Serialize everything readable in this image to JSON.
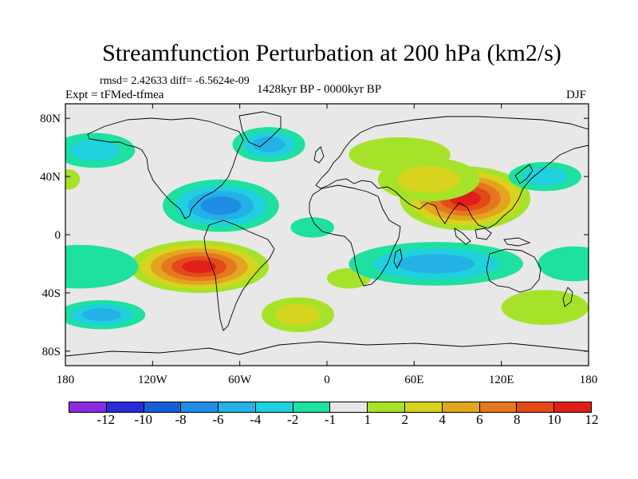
{
  "title": "Streamfunction Perturbation at 200 hPa (km2/s)",
  "subtitle": {
    "rmsd": "rmsd= 2.42633  diff= -6.5624e-09",
    "expt": "Expt = tFMed-tfmea",
    "period": "1428kyr BP - 0000kyr BP",
    "season": "DJF"
  },
  "axes": {
    "x_ticks": [
      "180",
      "120W",
      "60W",
      "0",
      "60E",
      "120E",
      "180"
    ],
    "y_ticks": [
      "80N",
      "40N",
      "0",
      "40S",
      "80S"
    ]
  },
  "legend": {
    "labels": [
      "-12",
      "-10",
      "-8",
      "-6",
      "-4",
      "-2",
      "-1",
      "1",
      "2",
      "4",
      "6",
      "8",
      "10",
      "12"
    ],
    "colors": [
      "#8a2be2",
      "#2a2ad8",
      "#1560d8",
      "#1e8de3",
      "#23b1e6",
      "#20d0dd",
      "#1ee0a0",
      "#e8e8e8",
      "#a6e22a",
      "#d6d41e",
      "#e3a520",
      "#e5781c",
      "#e34a18",
      "#e01e18"
    ]
  },
  "colors": {
    "ocean": "#e8e8e8",
    "coast": "#000000"
  },
  "map_features": {
    "positive": [
      {
        "name": "asia-high",
        "lon": 95,
        "lat": 25,
        "rx": 45,
        "ry": 22,
        "levels": 6
      },
      {
        "name": "south-america-high",
        "lon": -88,
        "lat": -22,
        "rx": 48,
        "ry": 18,
        "levels": 6
      },
      {
        "name": "eurasia-ridge",
        "lon": 50,
        "lat": 55,
        "rx": 35,
        "ry": 12,
        "levels": 1
      },
      {
        "name": "north-africa-ridge",
        "lon": 70,
        "lat": 38,
        "rx": 35,
        "ry": 15,
        "levels": 2
      },
      {
        "name": "south-atlantic-ridge",
        "lon": -20,
        "lat": -55,
        "rx": 25,
        "ry": 12,
        "levels": 2
      },
      {
        "name": "west-pacific-ridge",
        "lon": 150,
        "lat": -50,
        "rx": 30,
        "ry": 12,
        "levels": 1
      },
      {
        "name": "atlantic-small",
        "lon": 15,
        "lat": -30,
        "rx": 15,
        "ry": 7,
        "levels": 1
      },
      {
        "name": "dateline-east",
        "lon": -178,
        "lat": 38,
        "rx": 8,
        "ry": 7,
        "levels": 1
      }
    ],
    "negative": [
      {
        "name": "caribbean-low",
        "lon": -73,
        "lat": 20,
        "rx": 40,
        "ry": 18,
        "levels": 4
      },
      {
        "name": "indian-ocean-low",
        "lon": 75,
        "lat": -20,
        "rx": 60,
        "ry": 15,
        "levels": 3
      },
      {
        "name": "atlantic-north-low",
        "lon": -40,
        "lat": 62,
        "rx": 25,
        "ry": 12,
        "levels": 3
      },
      {
        "name": "pacific-north-low",
        "lon": -160,
        "lat": 58,
        "rx": 28,
        "ry": 12,
        "levels": 2
      },
      {
        "name": "pacific-south-low",
        "lon": -170,
        "lat": -22,
        "rx": 40,
        "ry": 15,
        "levels": 1
      },
      {
        "name": "south-pacific-low",
        "lon": -155,
        "lat": -55,
        "rx": 30,
        "ry": 10,
        "levels": 3
      },
      {
        "name": "japan-low",
        "lon": 150,
        "lat": 40,
        "rx": 25,
        "ry": 10,
        "levels": 2
      },
      {
        "name": "australia-low",
        "lon": 170,
        "lat": -20,
        "rx": 25,
        "ry": 12,
        "levels": 1
      },
      {
        "name": "atlantic-equator-low",
        "lon": -10,
        "lat": 5,
        "rx": 15,
        "ry": 7,
        "levels": 1
      }
    ]
  }
}
